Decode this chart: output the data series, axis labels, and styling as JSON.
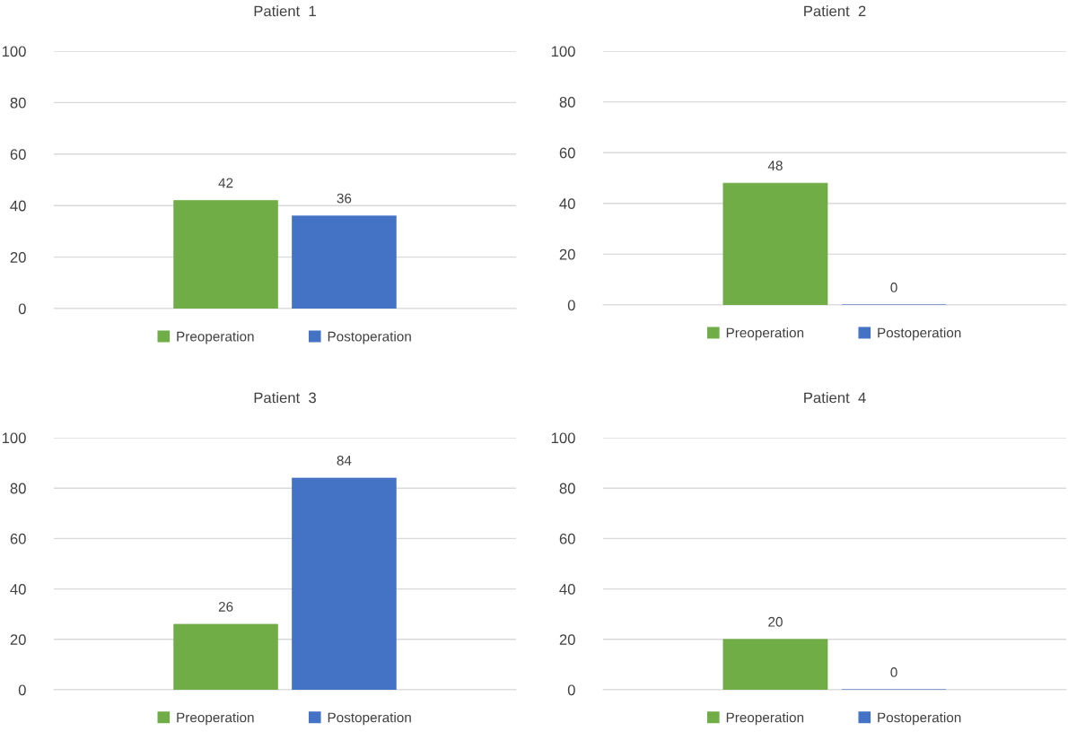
{
  "chart_data": [
    {
      "type": "bar",
      "title": "Patient  1",
      "categories": [
        null
      ],
      "ylim": [
        0,
        100
      ],
      "yticks": [
        0,
        20,
        40,
        60,
        80,
        100
      ],
      "grid": "y",
      "legend": "bottom",
      "data_labels": true,
      "series": [
        {
          "name": "Preoperation",
          "color": "#70ad47",
          "values": [
            42
          ]
        },
        {
          "name": "Postoperation",
          "color": "#4472c4",
          "values": [
            36
          ]
        }
      ]
    },
    {
      "type": "bar",
      "title": "Patient  2",
      "categories": [
        null
      ],
      "ylim": [
        0,
        100
      ],
      "yticks": [
        0,
        20,
        40,
        60,
        80,
        100
      ],
      "grid": "y",
      "legend": "bottom",
      "data_labels": true,
      "series": [
        {
          "name": "Preoperation",
          "color": "#70ad47",
          "values": [
            48
          ]
        },
        {
          "name": "Postoperation",
          "color": "#4472c4",
          "values": [
            0
          ]
        }
      ]
    },
    {
      "type": "bar",
      "title": "Patient  3",
      "categories": [
        null
      ],
      "ylim": [
        0,
        100
      ],
      "yticks": [
        0,
        20,
        40,
        60,
        80,
        100
      ],
      "grid": "y",
      "legend": "bottom",
      "data_labels": true,
      "series": [
        {
          "name": "Preoperation",
          "color": "#70ad47",
          "values": [
            26
          ]
        },
        {
          "name": "Postoperation",
          "color": "#4472c4",
          "values": [
            84
          ]
        }
      ]
    },
    {
      "type": "bar",
      "title": "Patient  4",
      "categories": [
        null
      ],
      "ylim": [
        0,
        100
      ],
      "yticks": [
        0,
        20,
        40,
        60,
        80,
        100
      ],
      "grid": "y",
      "legend": "bottom",
      "data_labels": true,
      "series": [
        {
          "name": "Preoperation",
          "color": "#70ad47",
          "values": [
            20
          ]
        },
        {
          "name": "Postoperation",
          "color": "#4472c4",
          "values": [
            0
          ]
        }
      ]
    }
  ]
}
